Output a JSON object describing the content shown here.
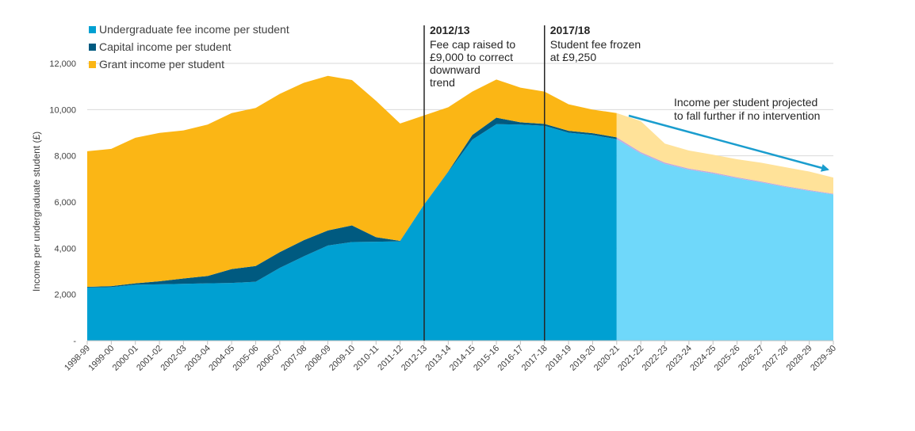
{
  "chart_data": {
    "type": "area",
    "stacked": true,
    "ylabel": "Income per undergraduate  student (£)",
    "xlabel": "",
    "ylim": [
      0,
      12000
    ],
    "yticks": [
      0,
      2000,
      4000,
      6000,
      8000,
      10000,
      12000
    ],
    "ytick_labels": [
      "-",
      "2,000",
      "4,000",
      "6,000",
      "8,000",
      "10,000",
      "12,000"
    ],
    "grid": "horizontal",
    "legend_position": "top-left",
    "categories": [
      "1998-99",
      "1999-00",
      "2000-01",
      "2001-02",
      "2002-03",
      "2003-04",
      "2004-05",
      "2005-06",
      "2006-07",
      "2007-08",
      "2008-09",
      "2009-10",
      "2010-11",
      "2011-12",
      "2012-13",
      "2013-14",
      "2014-15",
      "2015-16",
      "2016-17",
      "2017-18",
      "2018-19",
      "2019-20",
      "2020-21",
      "2021-22",
      "2022-23",
      "2023-24",
      "2024-25",
      "2025-26",
      "2026-27",
      "2027-28",
      "2028-29",
      "2029-30"
    ],
    "projection_start_index": 22,
    "series": [
      {
        "name": "Undergraduate fee income per student",
        "color": "#00a0d2",
        "projected_color": "#6fd8fa",
        "values": [
          2300,
          2320,
          2420,
          2440,
          2460,
          2480,
          2500,
          2550,
          3150,
          3650,
          4120,
          4270,
          4280,
          4300,
          5900,
          7300,
          8700,
          9370,
          9350,
          9300,
          9000,
          8900,
          8720,
          8100,
          7650,
          7400,
          7230,
          7030,
          6850,
          6650,
          6480,
          6330
        ]
      },
      {
        "name": "Capital income per student",
        "color": "#005a80",
        "projected_color": "#c3a9dc",
        "values": [
          30,
          40,
          60,
          130,
          230,
          320,
          600,
          680,
          680,
          700,
          650,
          720,
          200,
          20,
          0,
          20,
          200,
          280,
          100,
          80,
          80,
          80,
          80,
          60,
          60,
          50,
          50,
          40,
          40,
          40,
          40,
          30
        ]
      },
      {
        "name": "Grant income per student",
        "color": "#fbb615",
        "projected_color": "#ffe299",
        "values": [
          5870,
          5940,
          6300,
          6420,
          6410,
          6550,
          6750,
          6840,
          6850,
          6810,
          6690,
          6290,
          5900,
          5080,
          3850,
          2780,
          1880,
          1650,
          1500,
          1400,
          1150,
          1020,
          1050,
          1340,
          820,
          780,
          770,
          780,
          810,
          820,
          800,
          700
        ]
      }
    ],
    "annotations": [
      {
        "at": "2012-13",
        "title": "2012/13",
        "lines": [
          "Fee cap raised to",
          "£9,000 to correct",
          "downward",
          "trend"
        ]
      },
      {
        "at": "2017-18",
        "title": "2017/18",
        "lines": [
          "Student fee frozen",
          "at £9,250"
        ]
      }
    ],
    "arrow_note": {
      "lines": [
        "Income per student projected",
        "to fall further if no intervention"
      ],
      "color": "#1a9dce"
    }
  }
}
